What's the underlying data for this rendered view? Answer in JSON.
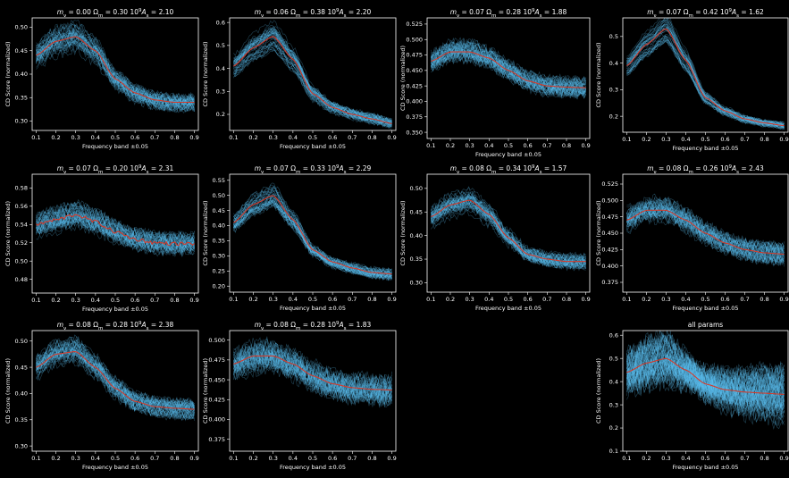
{
  "figure": {
    "background": "#000000",
    "axis_color": "#ffffff",
    "sim_color": "#5bc0f0",
    "mean_color": "#d63a2a"
  },
  "chart_data": [
    {
      "type": "line",
      "title_parts": [
        "m",
        "ν",
        " = 0.00    Ω",
        "m",
        " = 0.30    10",
        "9",
        "A",
        "s",
        " = 2.10"
      ],
      "xlabel": "Frequency band ±0.05",
      "ylabel": "CD Score (normalized)",
      "xticks": [
        "0.1",
        "0.2",
        "0.3",
        "0.4",
        "0.5",
        "0.6",
        "0.7",
        "0.8",
        "0.9"
      ],
      "yticks": [
        "0.30",
        "0.35",
        "0.40",
        "0.45",
        "0.50"
      ],
      "ytick_values": [
        0.3,
        0.35,
        0.4,
        0.45,
        0.5
      ],
      "ylim": [
        0.28,
        0.52
      ],
      "spread": 0.035,
      "x": [
        0.1,
        0.2,
        0.3,
        0.4,
        0.5,
        0.6,
        0.7,
        0.8,
        0.9
      ],
      "series": [
        {
          "values": [
            0.44,
            0.47,
            0.48,
            0.45,
            0.39,
            0.36,
            0.345,
            0.34,
            0.34
          ]
        }
      ]
    },
    {
      "type": "line",
      "title_parts": [
        "m",
        "ν",
        " = 0.06    Ω",
        "m",
        " = 0.38    10",
        "9",
        "A",
        "s",
        " = 2.20"
      ],
      "xlabel": "Frequency band ±0.05",
      "ylabel": "CD Score (normalized)",
      "xticks": [
        "0.1",
        "0.2",
        "0.3",
        "0.4",
        "0.5",
        "0.6",
        "0.7",
        "0.8",
        "0.9"
      ],
      "yticks": [
        "0.2",
        "0.3",
        "0.4",
        "0.5",
        "0.6"
      ],
      "ytick_values": [
        0.2,
        0.3,
        0.4,
        0.5,
        0.6
      ],
      "ylim": [
        0.13,
        0.62
      ],
      "spread": 0.04,
      "x": [
        0.1,
        0.2,
        0.3,
        0.4,
        0.5,
        0.6,
        0.7,
        0.8,
        0.9
      ],
      "series": [
        {
          "values": [
            0.41,
            0.49,
            0.54,
            0.44,
            0.29,
            0.23,
            0.2,
            0.18,
            0.16
          ]
        }
      ]
    },
    {
      "type": "line",
      "title_parts": [
        "m",
        "ν",
        " = 0.07    Ω",
        "m",
        " = 0.28    10",
        "9",
        "A",
        "s",
        " = 1.88"
      ],
      "xlabel": "Frequency band ±0.05",
      "ylabel": "CD Score (normalized)",
      "xticks": [
        "0.1",
        "0.2",
        "0.3",
        "0.4",
        "0.5",
        "0.6",
        "0.7",
        "0.8",
        "0.9"
      ],
      "yticks": [
        "0.350",
        "0.375",
        "0.400",
        "0.425",
        "0.450",
        "0.475",
        "0.500",
        "0.525"
      ],
      "ytick_values": [
        0.35,
        0.375,
        0.4,
        0.425,
        0.45,
        0.475,
        0.5,
        0.525
      ],
      "ylim": [
        0.34,
        0.535
      ],
      "spread": 0.03,
      "x": [
        0.1,
        0.2,
        0.3,
        0.4,
        0.5,
        0.6,
        0.7,
        0.8,
        0.9
      ],
      "series": [
        {
          "values": [
            0.465,
            0.48,
            0.48,
            0.47,
            0.45,
            0.433,
            0.425,
            0.423,
            0.422
          ]
        }
      ]
    },
    {
      "type": "line",
      "title_parts": [
        "m",
        "ν",
        " = 0.07    Ω",
        "m",
        " = 0.42    10",
        "9",
        "A",
        "s",
        " = 1.62"
      ],
      "xlabel": "Frequency band ±0.05",
      "ylabel": "CD Score (normalized)",
      "xticks": [
        "0.1",
        "0.2",
        "0.3",
        "0.4",
        "0.5",
        "0.6",
        "0.7",
        "0.8",
        "0.9"
      ],
      "yticks": [
        "0.2",
        "0.3",
        "0.4",
        "0.5"
      ],
      "ytick_values": [
        0.2,
        0.3,
        0.4,
        0.5
      ],
      "ylim": [
        0.14,
        0.57
      ],
      "spread": 0.025,
      "x": [
        0.1,
        0.2,
        0.3,
        0.4,
        0.5,
        0.6,
        0.7,
        0.8,
        0.9
      ],
      "series": [
        {
          "values": [
            0.39,
            0.47,
            0.53,
            0.41,
            0.27,
            0.22,
            0.19,
            0.175,
            0.165
          ]
        }
      ]
    },
    {
      "type": "line",
      "title_parts": [
        "m",
        "ν",
        " = 0.07    Ω",
        "m",
        " = 0.20    10",
        "9",
        "A",
        "s",
        " = 2.31"
      ],
      "xlabel": "Frequency band ±0.05",
      "ylabel": "CD Score (normalized)",
      "xticks": [
        "0.1",
        "0.2",
        "0.3",
        "0.4",
        "0.5",
        "0.6",
        "0.7",
        "0.8",
        "0.9"
      ],
      "yticks": [
        "0.48",
        "0.50",
        "0.52",
        "0.54",
        "0.56",
        "0.58"
      ],
      "ytick_values": [
        0.48,
        0.5,
        0.52,
        0.54,
        0.56,
        0.58
      ],
      "ylim": [
        0.465,
        0.595
      ],
      "spread": 0.022,
      "x": [
        0.1,
        0.2,
        0.3,
        0.4,
        0.5,
        0.6,
        0.7,
        0.8,
        0.9
      ],
      "series": [
        {
          "values": [
            0.54,
            0.545,
            0.551,
            0.543,
            0.532,
            0.524,
            0.52,
            0.519,
            0.519
          ]
        }
      ]
    },
    {
      "type": "line",
      "title_parts": [
        "m",
        "ν",
        " = 0.07    Ω",
        "m",
        " = 0.33    10",
        "9",
        "A",
        "s",
        " = 2.29"
      ],
      "xlabel": "Frequency band ±0.05",
      "ylabel": "CD Score (normalized)",
      "xticks": [
        "0.1",
        "0.2",
        "0.3",
        "0.4",
        "0.5",
        "0.6",
        "0.7",
        "0.8",
        "0.9"
      ],
      "yticks": [
        "0.20",
        "0.25",
        "0.30",
        "0.35",
        "0.40",
        "0.45",
        "0.50",
        "0.55"
      ],
      "ytick_values": [
        0.2,
        0.25,
        0.3,
        0.35,
        0.4,
        0.45,
        0.5,
        0.55
      ],
      "ylim": [
        0.18,
        0.57
      ],
      "spread": 0.035,
      "x": [
        0.1,
        0.2,
        0.3,
        0.4,
        0.5,
        0.6,
        0.7,
        0.8,
        0.9
      ],
      "series": [
        {
          "values": [
            0.41,
            0.47,
            0.5,
            0.42,
            0.32,
            0.28,
            0.26,
            0.245,
            0.24
          ]
        }
      ]
    },
    {
      "type": "line",
      "title_parts": [
        "m",
        "ν",
        " = 0.08    Ω",
        "m",
        " = 0.34    10",
        "9",
        "A",
        "s",
        " = 1.57"
      ],
      "xlabel": "Frequency band ±0.05",
      "ylabel": "CD Score (normalized)",
      "xticks": [
        "0.1",
        "0.2",
        "0.3",
        "0.4",
        "0.5",
        "0.6",
        "0.7",
        "0.8",
        "0.9"
      ],
      "yticks": [
        "0.30",
        "0.35",
        "0.40",
        "0.45",
        "0.50"
      ],
      "ytick_values": [
        0.3,
        0.35,
        0.4,
        0.45,
        0.5
      ],
      "ylim": [
        0.28,
        0.53
      ],
      "spread": 0.03,
      "x": [
        0.1,
        0.2,
        0.3,
        0.4,
        0.5,
        0.6,
        0.7,
        0.8,
        0.9
      ],
      "series": [
        {
          "values": [
            0.44,
            0.465,
            0.475,
            0.445,
            0.395,
            0.36,
            0.35,
            0.345,
            0.345
          ]
        }
      ]
    },
    {
      "type": "line",
      "title_parts": [
        "m",
        "ν",
        " = 0.08    Ω",
        "m",
        " = 0.26    10",
        "9",
        "A",
        "s",
        " = 2.43"
      ],
      "xlabel": "Frequency band ±0.05",
      "ylabel": "CD Score (normalized)",
      "xticks": [
        "0.1",
        "0.2",
        "0.3",
        "0.4",
        "0.5",
        "0.6",
        "0.7",
        "0.8",
        "0.9"
      ],
      "yticks": [
        "0.375",
        "0.400",
        "0.425",
        "0.450",
        "0.475",
        "0.500",
        "0.525"
      ],
      "ytick_values": [
        0.375,
        0.4,
        0.425,
        0.45,
        0.475,
        0.5,
        0.525
      ],
      "ylim": [
        0.36,
        0.54
      ],
      "spread": 0.03,
      "x": [
        0.1,
        0.2,
        0.3,
        0.4,
        0.5,
        0.6,
        0.7,
        0.8,
        0.9
      ],
      "series": [
        {
          "values": [
            0.47,
            0.485,
            0.485,
            0.47,
            0.45,
            0.435,
            0.425,
            0.42,
            0.418
          ]
        }
      ]
    },
    {
      "type": "line",
      "title_parts": [
        "m",
        "ν",
        " = 0.08    Ω",
        "m",
        " = 0.28    10",
        "9",
        "A",
        "s",
        " = 2.38"
      ],
      "xlabel": "Frequency band ±0.05",
      "ylabel": "CD Score (normalized)",
      "xticks": [
        "0.1",
        "0.2",
        "0.3",
        "0.4",
        "0.5",
        "0.6",
        "0.7",
        "0.8",
        "0.9"
      ],
      "yticks": [
        "0.30",
        "0.35",
        "0.40",
        "0.45",
        "0.50"
      ],
      "ytick_values": [
        0.3,
        0.35,
        0.4,
        0.45,
        0.5
      ],
      "ylim": [
        0.29,
        0.52
      ],
      "spread": 0.035,
      "x": [
        0.1,
        0.2,
        0.3,
        0.4,
        0.5,
        0.6,
        0.7,
        0.8,
        0.9
      ],
      "series": [
        {
          "values": [
            0.45,
            0.475,
            0.48,
            0.45,
            0.41,
            0.385,
            0.375,
            0.372,
            0.37
          ]
        }
      ]
    },
    {
      "type": "line",
      "title_parts": [
        "m",
        "ν",
        " = 0.08    Ω",
        "m",
        " = 0.28    10",
        "9",
        "A",
        "s",
        " = 1.83"
      ],
      "xlabel": "Frequency band ±0.05",
      "ylabel": "CD Score (normalized)",
      "xticks": [
        "0.1",
        "0.2",
        "0.3",
        "0.4",
        "0.5",
        "0.6",
        "0.7",
        "0.8",
        "0.9"
      ],
      "yticks": [
        "0.375",
        "0.400",
        "0.425",
        "0.450",
        "0.475",
        "0.500"
      ],
      "ytick_values": [
        0.375,
        0.4,
        0.425,
        0.45,
        0.475,
        0.5
      ],
      "ylim": [
        0.36,
        0.512
      ],
      "spread": 0.035,
      "x": [
        0.1,
        0.2,
        0.3,
        0.4,
        0.5,
        0.6,
        0.7,
        0.8,
        0.9
      ],
      "series": [
        {
          "values": [
            0.47,
            0.48,
            0.48,
            0.47,
            0.455,
            0.445,
            0.44,
            0.438,
            0.437
          ]
        }
      ]
    },
    {
      "type": "line",
      "title_parts": [
        "all params"
      ],
      "xlabel": "Frequency band ±0.05",
      "ylabel": "CD Score (normalized)",
      "xticks": [
        "0.1",
        "0.2",
        "0.3",
        "0.4",
        "0.5",
        "0.6",
        "0.7",
        "0.8",
        "0.9"
      ],
      "yticks": [
        "0.1",
        "0.2",
        "0.3",
        "0.4",
        "0.5",
        "0.6"
      ],
      "ytick_values": [
        0.1,
        0.2,
        0.3,
        0.4,
        0.5,
        0.6
      ],
      "ylim": [
        0.1,
        0.62
      ],
      "spread": 0.15,
      "x": [
        0.1,
        0.2,
        0.3,
        0.4,
        0.5,
        0.6,
        0.7,
        0.8,
        0.9
      ],
      "series": [
        {
          "values": [
            0.44,
            0.48,
            0.5,
            0.45,
            0.39,
            0.365,
            0.355,
            0.35,
            0.345
          ]
        }
      ]
    }
  ]
}
